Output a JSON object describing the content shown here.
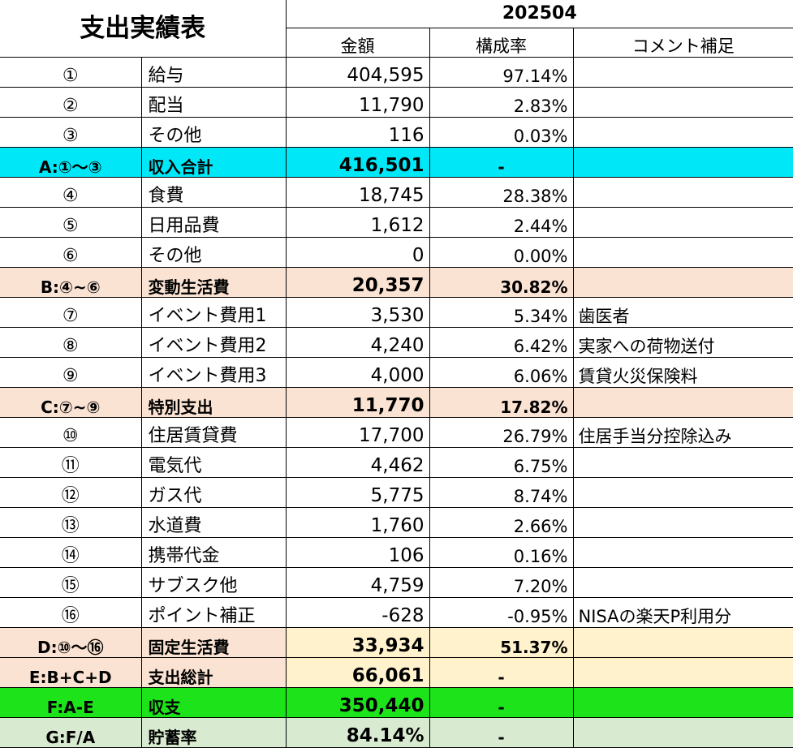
{
  "title": "支出実績表",
  "period": "202504",
  "headers": {
    "amount": "金額",
    "ratio": "構成率",
    "comment": "コメント補足"
  },
  "rows": [
    {
      "no": "①",
      "label": "給与",
      "amount": "404,595",
      "ratio": "97.14%",
      "comment": "",
      "kind": "item"
    },
    {
      "no": "②",
      "label": "配当",
      "amount": "11,790",
      "ratio": "2.83%",
      "comment": "",
      "kind": "item"
    },
    {
      "no": "③",
      "label": "その他",
      "amount": "116",
      "ratio": "0.03%",
      "comment": "",
      "kind": "item"
    },
    {
      "no": "A:①～③",
      "label": "収入合計",
      "amount": "416,501",
      "ratio": "-",
      "comment": "",
      "kind": "income-total"
    },
    {
      "no": "④",
      "label": "食費",
      "amount": "18,745",
      "ratio": "28.38%",
      "comment": "",
      "kind": "item"
    },
    {
      "no": "⑤",
      "label": "日用品費",
      "amount": "1,612",
      "ratio": "2.44%",
      "comment": "",
      "kind": "item"
    },
    {
      "no": "⑥",
      "label": "その他",
      "amount": "0",
      "ratio": "0.00%",
      "comment": "",
      "kind": "item"
    },
    {
      "no": "B:④~⑥",
      "label": "変動生活費",
      "amount": "20,357",
      "ratio": "30.82%",
      "comment": "",
      "kind": "subtotal"
    },
    {
      "no": "⑦",
      "label": "イベント費用1",
      "amount": "3,530",
      "ratio": "5.34%",
      "comment": "歯医者",
      "kind": "item"
    },
    {
      "no": "⑧",
      "label": "イベント費用2",
      "amount": "4,240",
      "ratio": "6.42%",
      "comment": "実家への荷物送付",
      "kind": "item"
    },
    {
      "no": "⑨",
      "label": "イベント費用3",
      "amount": "4,000",
      "ratio": "6.06%",
      "comment": "賃貸火災保険料",
      "kind": "item"
    },
    {
      "no": "C:⑦~⑨",
      "label": "特別支出",
      "amount": "11,770",
      "ratio": "17.82%",
      "comment": "",
      "kind": "subtotal"
    },
    {
      "no": "⑩",
      "label": "住居賃貸費",
      "amount": "17,700",
      "ratio": "26.79%",
      "comment": "住居手当分控除込み",
      "kind": "item"
    },
    {
      "no": "⑪",
      "label": "電気代",
      "amount": "4,462",
      "ratio": "6.75%",
      "comment": "",
      "kind": "item"
    },
    {
      "no": "⑫",
      "label": "ガス代",
      "amount": "5,775",
      "ratio": "8.74%",
      "comment": "",
      "kind": "item"
    },
    {
      "no": "⑬",
      "label": "水道費",
      "amount": "1,760",
      "ratio": "2.66%",
      "comment": "",
      "kind": "item"
    },
    {
      "no": "⑭",
      "label": "携帯代金",
      "amount": "106",
      "ratio": "0.16%",
      "comment": "",
      "kind": "item"
    },
    {
      "no": "⑮",
      "label": "サブスク他",
      "amount": "4,759",
      "ratio": "7.20%",
      "comment": "",
      "kind": "item"
    },
    {
      "no": "⑯",
      "label": "ポイント補正",
      "amount": "-628",
      "ratio": "-0.95%",
      "comment": "NISAの楽天P利用分",
      "kind": "item"
    },
    {
      "no": "D:⑩～⑯",
      "label": "固定生活費",
      "amount": "33,934",
      "ratio": "51.37%",
      "comment": "",
      "kind": "fixed-total"
    },
    {
      "no": "E:B+C+D",
      "label": "支出総計",
      "amount": "66,061",
      "ratio": "-",
      "comment": "",
      "kind": "expense-total"
    },
    {
      "no": "F:A-E",
      "label": "収支",
      "amount": "350,440",
      "ratio": "-",
      "comment": "",
      "kind": "balance"
    },
    {
      "no": "G:F/A",
      "label": "貯蓄率",
      "amount": "84.14%",
      "ratio": "-",
      "comment": "",
      "kind": "savings"
    }
  ],
  "colors": {
    "income_total": "#00e8f8",
    "subtotal": "#fbe3d3",
    "fixed_amount": "#fff2cc",
    "balance": "#1de41a",
    "savings": "#d8ebd1"
  }
}
